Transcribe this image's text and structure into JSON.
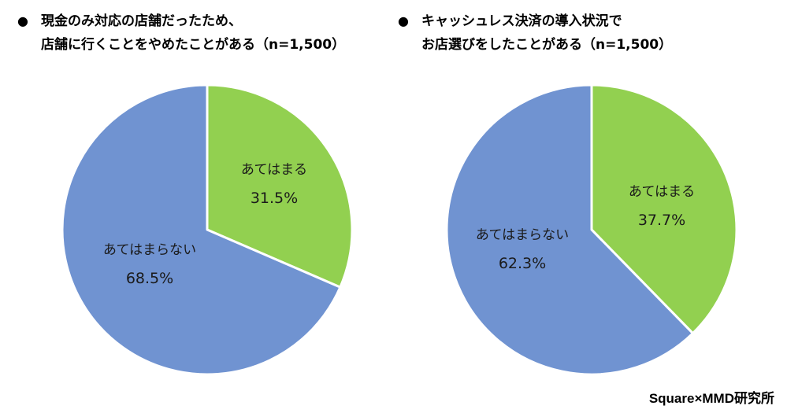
{
  "titles": {
    "left": {
      "bullet": "●",
      "line1": "現金のみ対応の店舗だったため、",
      "line2": "店舗に行くことをやめたことがある（n=1,500）"
    },
    "right": {
      "bullet": "●",
      "line1": "キャッシュレス決済の導入状況で",
      "line2": "お店選びをしたことがある（n=1,500）"
    }
  },
  "source": "Square×MMD研究所",
  "colors": {
    "applies": "#92d050",
    "not_applies": "#7093d1",
    "border": "#ffffff"
  },
  "chart_data": [
    {
      "type": "pie",
      "title": "現金のみ対応の店舗だったため、店舗に行くことをやめたことがある（n=1,500）",
      "slices": [
        {
          "label": "あてはまる",
          "value": 31.5,
          "display": "31.5%",
          "color": "#92d050"
        },
        {
          "label": "あてはまらない",
          "value": 68.5,
          "display": "68.5%",
          "color": "#7093d1"
        }
      ],
      "start": "12 o'clock",
      "direction": "clockwise"
    },
    {
      "type": "pie",
      "title": "キャッシュレス決済の導入状況でお店選びをしたことがある（n=1,500）",
      "slices": [
        {
          "label": "あてはまる",
          "value": 37.7,
          "display": "37.7%",
          "color": "#92d050"
        },
        {
          "label": "あてはまらない",
          "value": 62.3,
          "display": "62.3%",
          "color": "#7093d1"
        }
      ],
      "start": "12 o'clock",
      "direction": "clockwise"
    }
  ]
}
